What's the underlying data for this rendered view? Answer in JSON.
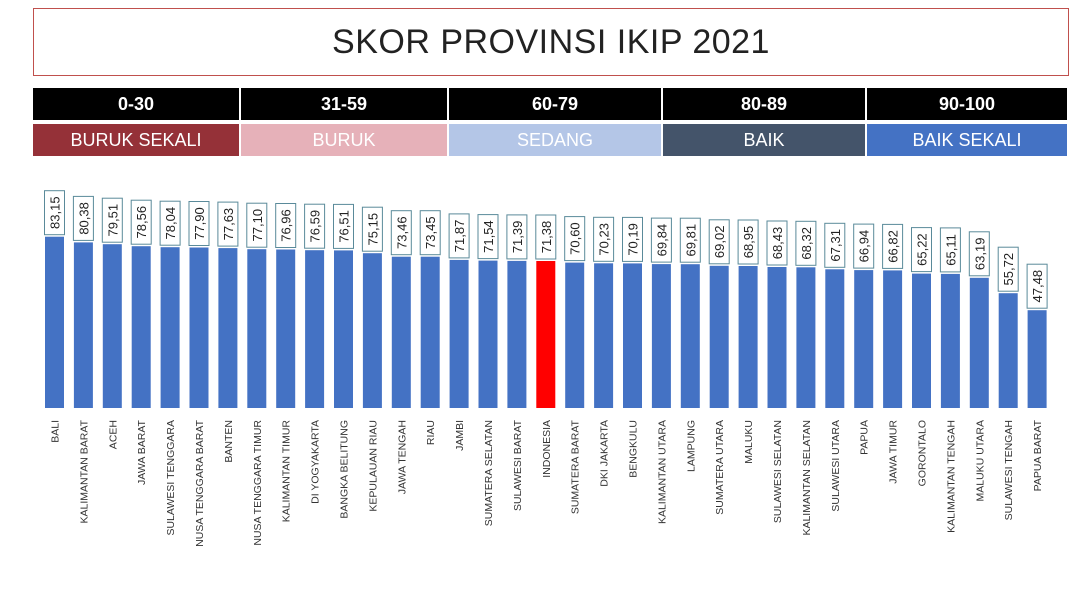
{
  "title": "SKOR PROVINSI IKIP 2021",
  "legend": [
    {
      "range": "0-30",
      "label": "BURUK SEKALI",
      "color": "#953138",
      "text_color": "#ffffff"
    },
    {
      "range": "31-59",
      "label": "BURUK",
      "color": "#e6b1b9",
      "text_color": "#ffffff"
    },
    {
      "range": "60-79",
      "label": "SEDANG",
      "color": "#b4c6e7",
      "text_color": "#ffffff"
    },
    {
      "range": "80-89",
      "label": "BAIK",
      "color": "#44546a",
      "text_color": "#ffffff"
    },
    {
      "range": "90-100",
      "label": "BAIK SEKALI",
      "color": "#4472c4",
      "text_color": "#ffffff"
    }
  ],
  "chart_data": {
    "type": "bar",
    "title": "SKOR PROVINSI IKIP 2021",
    "xlabel": "",
    "ylabel": "",
    "ylim": [
      0,
      90
    ],
    "grid": false,
    "bar_color": "#4472c4",
    "highlight_color": "#ff0000",
    "highlight_category": "INDONESIA",
    "categories": [
      "BALI",
      "KALIMANTAN BARAT",
      "ACEH",
      "JAWA BARAT",
      "SULAWESI TENGGARA",
      "NUSA TENGGARA BARAT",
      "BANTEN",
      "NUSA TENGGARA TIMUR",
      "KALIMANTAN TIMUR",
      "DI YOGYAKARTA",
      "BANGKA BELITUNG",
      "KEPULAUAN RIAU",
      "JAWA TENGAH",
      "RIAU",
      "JAMBI",
      "SUMATERA SELATAN",
      "SULAWESI BARAT",
      "INDONESIA",
      "SUMATERA BARAT",
      "DKI JAKARTA",
      "BENGKULU",
      "KALIMANTAN UTARA",
      "LAMPUNG",
      "SUMATERA UTARA",
      "MALUKU",
      "SULAWESI SELATAN",
      "KALIMANTAN SELATAN",
      "SULAWESI UTARA",
      "PAPUA",
      "JAWA TIMUR",
      "GORONTALO",
      "KALIMANTAN TENGAH",
      "MALUKU UTARA",
      "SULAWESI TENGAH",
      "PAPUA BARAT"
    ],
    "values": [
      83.15,
      80.38,
      79.51,
      78.56,
      78.04,
      77.9,
      77.63,
      77.1,
      76.96,
      76.59,
      76.51,
      75.15,
      73.46,
      73.45,
      71.87,
      71.54,
      71.39,
      71.38,
      70.6,
      70.23,
      70.19,
      69.84,
      69.81,
      69.02,
      68.95,
      68.43,
      68.32,
      67.31,
      66.94,
      66.82,
      65.22,
      65.11,
      63.19,
      55.72,
      47.48
    ],
    "value_labels": [
      "83,15",
      "80,38",
      "79,51",
      "78,56",
      "78,04",
      "77,90",
      "77,63",
      "77,10",
      "76,96",
      "76,59",
      "76,51",
      "75,15",
      "73,46",
      "73,45",
      "71,87",
      "71,54",
      "71,39",
      "71,38",
      "70,60",
      "70,23",
      "70,19",
      "69,84",
      "69,81",
      "69,02",
      "68,95",
      "68,43",
      "68,32",
      "67,31",
      "66,94",
      "66,82",
      "65,22",
      "65,11",
      "63,19",
      "55,72",
      "47,48"
    ]
  }
}
